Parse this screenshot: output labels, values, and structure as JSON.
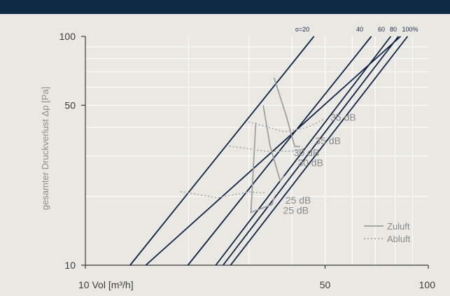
{
  "chart_data": {
    "type": "line",
    "title": "",
    "xlabel": "Vol [m³/h]",
    "ylabel": "gesamter Druckverlust Δp [Pa]",
    "x_scale": "log",
    "y_scale": "log",
    "xlim": [
      10,
      100
    ],
    "ylim": [
      10,
      100
    ],
    "x_ticks": [
      {
        "value": 10,
        "label": "10 Vol [m³/h]"
      },
      {
        "value": 50,
        "label": "50"
      },
      {
        "value": 100,
        "label": "100"
      }
    ],
    "y_ticks": [
      {
        "value": 10,
        "label": "10"
      },
      {
        "value": 50,
        "label": "50"
      },
      {
        "value": 100,
        "label": "100"
      }
    ],
    "grid": true,
    "legend_position": "bottom-right",
    "colors": {
      "background": "#e9e8e3",
      "topbar": "#0e2a45",
      "opening_lines": "#0e2346",
      "zuluft": "#9c9c9c",
      "abluft": "#a8a8a8",
      "grid": "#ffffff"
    },
    "opening_lines": [
      {
        "label": "o=20",
        "points": [
          [
            13.5,
            10
          ],
          [
            46.4,
            100
          ]
        ]
      },
      {
        "label": "40",
        "points": [
          [
            19.9,
            10
          ],
          [
            68.2,
            100
          ]
        ]
      },
      {
        "label": "60",
        "points": [
          [
            24.0,
            10
          ],
          [
            77.7,
            100
          ]
        ]
      },
      {
        "label": "80",
        "points": [
          [
            25.2,
            10
          ],
          [
            81.8,
            100
          ]
        ]
      },
      {
        "label": "100%",
        "points": [
          [
            26.5,
            10
          ],
          [
            87.0,
            100
          ]
        ]
      },
      {
        "label": "",
        "points": [
          [
            15.0,
            10
          ],
          [
            83.0,
            100
          ]
        ]
      }
    ],
    "series": [
      {
        "name": "Zuluft",
        "style": "solid",
        "segments": [
          [
            [
              31.4,
              42
            ],
            [
              30.4,
              17
            ],
            [
              35.0,
              18.4
            ],
            [
              35.6,
              20
            ]
          ],
          [
            [
              33.0,
              50
            ],
            [
              34.6,
              33
            ],
            [
              37.0,
              23.4
            ],
            [
              38.0,
              24.5
            ]
          ],
          [
            [
              35.5,
              66
            ],
            [
              38.5,
              45
            ],
            [
              40.8,
              33
            ],
            [
              42.3,
              33
            ]
          ]
        ],
        "labels": [
          {
            "text": "25 dB",
            "value": 25,
            "at": [
              37.7,
              16.8
            ]
          },
          {
            "text": "25 dB",
            "value": 25,
            "at": [
              38.3,
              18.6
            ]
          },
          {
            "text": "30 dB",
            "value": 30,
            "at": [
              41.6,
              27.1
            ]
          },
          {
            "text": "35 dB",
            "value": 35,
            "at": [
              46.8,
              33.8
            ]
          }
        ]
      },
      {
        "name": "Abluft",
        "style": "dotted",
        "segments": [
          [
            [
              18.9,
              21.0
            ],
            [
              24.3,
              19.7
            ],
            [
              29.9,
              20.9
            ],
            [
              33.5,
              20.7
            ]
          ],
          [
            [
              26.3,
              33.2
            ],
            [
              33.5,
              31.5
            ],
            [
              40.0,
              31.5
            ],
            [
              44.1,
              32.5
            ]
          ],
          [
            [
              29.9,
              42.3
            ],
            [
              38.0,
              38.3
            ],
            [
              44.4,
              40.0
            ],
            [
              49.8,
              43.5
            ]
          ]
        ],
        "labels": [
          {
            "text": "30 dB",
            "value": 30,
            "at": [
              40.5,
              30.0
            ]
          },
          {
            "text": "35 dB",
            "value": 35,
            "at": [
              51.8,
              42.8
            ]
          }
        ]
      }
    ],
    "legend": [
      {
        "label": "Zuluft",
        "style": "solid"
      },
      {
        "label": "Abluft",
        "style": "dotted"
      }
    ]
  }
}
